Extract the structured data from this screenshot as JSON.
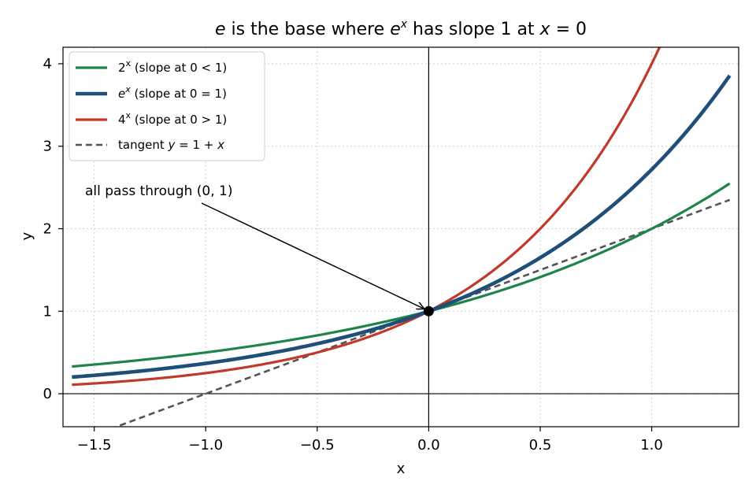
{
  "chart_data": {
    "type": "line",
    "title": "e is the base where e^x has slope 1 at x = 0",
    "xlabel": "x",
    "ylabel": "y",
    "xlim": [
      -1.64,
      1.39
    ],
    "ylim": [
      -0.4,
      4.2
    ],
    "xticks": [
      -1.5,
      -1.0,
      -0.5,
      0.0,
      0.5,
      1.0
    ],
    "yticks": [
      0,
      1,
      2,
      3,
      4
    ],
    "xtick_labels": [
      "−1.5",
      "−1.0",
      "−0.5",
      "0.0",
      "0.5",
      "1.0"
    ],
    "ytick_labels": [
      "0",
      "1",
      "2",
      "3",
      "4"
    ],
    "grid": true,
    "legend_position": "top-left",
    "series": [
      {
        "name": "2^x (slope at 0 < 1)",
        "function": "2^x",
        "color": "#1e8449",
        "style": "solid",
        "x_range": [
          -1.6,
          1.35
        ]
      },
      {
        "name": "e^x (slope at 0 = 1)",
        "function": "e^x",
        "color": "#1f4e79",
        "style": "solid",
        "x_range": [
          -1.6,
          1.35
        ]
      },
      {
        "name": "4^x (slope at 0 > 1)",
        "function": "4^x",
        "color": "#c0392b",
        "style": "solid",
        "x_range": [
          -1.6,
          1.35
        ]
      },
      {
        "name": "tangent y = 1 + x",
        "function": "1 + x",
        "color": "#555555",
        "style": "dashed",
        "x_range": [
          -1.6,
          1.35
        ]
      }
    ],
    "marker": {
      "x": 0,
      "y": 1
    },
    "annotation": {
      "text": "all pass through (0, 1)",
      "points_to": [
        0,
        1
      ]
    }
  }
}
